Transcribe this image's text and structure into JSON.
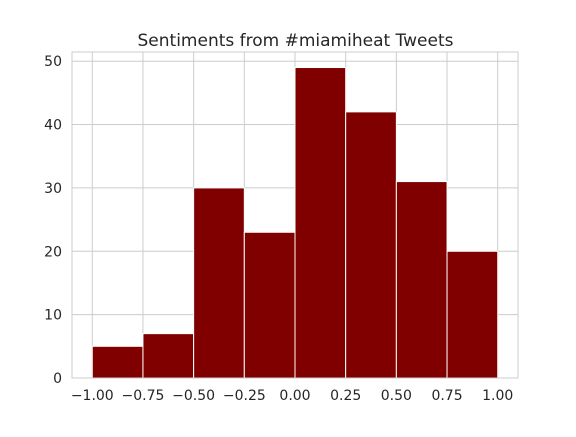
{
  "chart_data": {
    "type": "bar",
    "title": "Sentiments from #miamiheat Tweets",
    "xlabel": "",
    "ylabel": "",
    "bins": [
      {
        "x0": -1.0,
        "x1": -0.75,
        "count": 5
      },
      {
        "x0": -0.75,
        "x1": -0.5,
        "count": 7
      },
      {
        "x0": -0.5,
        "x1": -0.25,
        "count": 30
      },
      {
        "x0": -0.25,
        "x1": 0.0,
        "count": 23
      },
      {
        "x0": 0.0,
        "x1": 0.25,
        "count": 49
      },
      {
        "x0": 0.25,
        "x1": 0.5,
        "count": 42
      },
      {
        "x0": 0.5,
        "x1": 0.75,
        "count": 31
      },
      {
        "x0": 0.75,
        "x1": 1.0,
        "count": 20
      }
    ],
    "xticks": [
      -1.0,
      -0.75,
      -0.5,
      -0.25,
      0.0,
      0.25,
      0.5,
      0.75,
      1.0
    ],
    "xtick_labels": [
      "−1.00",
      "−0.75",
      "−0.50",
      "−0.25",
      "0.00",
      "0.25",
      "0.50",
      "0.75",
      "1.00"
    ],
    "yticks": [
      0,
      10,
      20,
      30,
      40,
      50
    ],
    "ytick_labels": [
      "0",
      "10",
      "20",
      "30",
      "40",
      "50"
    ],
    "xlim": [
      -1.1,
      1.1
    ],
    "ylim": [
      0,
      51.45
    ],
    "grid": true,
    "colors": {
      "bar": "#800000",
      "bar_edge": "#ffffff",
      "grid": "#cccccc",
      "spine": "#cccccc"
    }
  }
}
